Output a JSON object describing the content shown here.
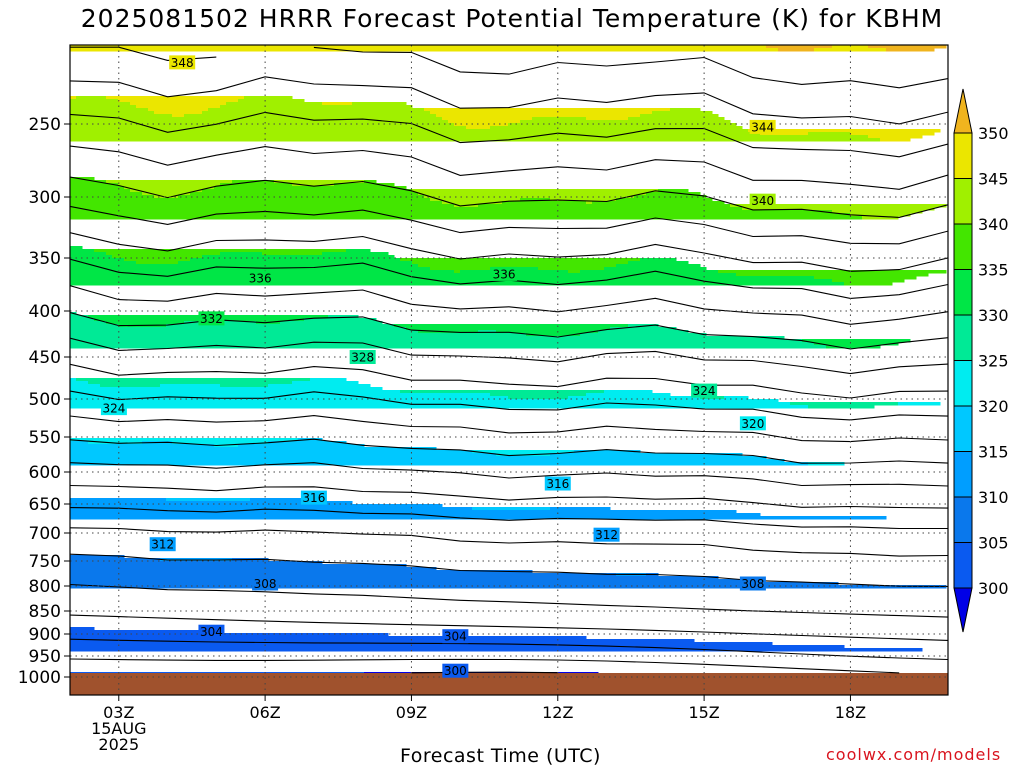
{
  "title": "2025081502 HRRR Forecast Potential Temperature (K) for KBHM",
  "xlabel": "Forecast Time (UTC)",
  "credit": "coolwx.com/models",
  "chart_data": {
    "type": "contour",
    "variable": "Potential Temperature (K)",
    "y_axis": {
      "quantity": "pressure (hPa)",
      "ticks": [
        250,
        300,
        350,
        400,
        450,
        500,
        550,
        600,
        650,
        700,
        750,
        800,
        850,
        900,
        950,
        1000
      ],
      "range": [
        1000,
        200
      ]
    },
    "x_axis": {
      "ticks": [
        {
          "label": "03Z",
          "hour": 3,
          "sub": [
            "15AUG",
            "2025"
          ]
        },
        {
          "label": "06Z",
          "hour": 6
        },
        {
          "label": "09Z",
          "hour": 9
        },
        {
          "label": "12Z",
          "hour": 12
        },
        {
          "label": "15Z",
          "hour": 15
        },
        {
          "label": "18Z",
          "hour": 18
        }
      ],
      "range_hours": [
        2,
        20
      ]
    },
    "grid": true,
    "legend_position": "right",
    "colorbar": {
      "levels": [
        300,
        305,
        310,
        315,
        320,
        325,
        330,
        335,
        340,
        345,
        350
      ],
      "colors": [
        "#0000e6",
        "#0a5af0",
        "#0a78ec",
        "#009eff",
        "#00c8ff",
        "#00ecf0",
        "#00ea96",
        "#00e646",
        "#43e600",
        "#a0f000",
        "#ebe600",
        "#ffff00",
        "#f0b41e"
      ]
    },
    "ground_color": "#a0522d",
    "contours": {
      "interval": 2,
      "levels": [
        300,
        302,
        304,
        306,
        308,
        310,
        312,
        314,
        316,
        318,
        320,
        322,
        324,
        326,
        328,
        330,
        332,
        334,
        336,
        338,
        340,
        342,
        344,
        346,
        348
      ],
      "profiles_hours": [
        2,
        3,
        4,
        5,
        6,
        7,
        8,
        9,
        10,
        11,
        12,
        13,
        14,
        15,
        16,
        17,
        18,
        19,
        20
      ],
      "base_profile": {
        "pressure": [
          1000,
          950,
          900,
          850,
          800,
          750,
          700,
          650,
          600,
          550,
          500,
          450,
          400,
          350,
          300,
          250,
          200
        ],
        "theta": [
          300.8,
          303.5,
          305.6,
          307.4,
          309.0,
          310.6,
          312.5,
          315.3,
          318.1,
          321.2,
          324.5,
          327.8,
          331.5,
          335.5,
          340.0,
          344.5,
          349.0
        ]
      },
      "labels": [
        {
          "text": "348",
          "hour": 4.3,
          "pressure": 211
        },
        {
          "text": "344",
          "hour": 16.2,
          "pressure": 252
        },
        {
          "text": "340",
          "hour": 16.2,
          "pressure": 303
        },
        {
          "text": "336",
          "hour": 5.9,
          "pressure": 369
        },
        {
          "text": "336",
          "hour": 10.9,
          "pressure": 365
        },
        {
          "text": "332",
          "hour": 4.9,
          "pressure": 408
        },
        {
          "text": "328",
          "hour": 8.0,
          "pressure": 450
        },
        {
          "text": "324",
          "hour": 2.9,
          "pressure": 512
        },
        {
          "text": "324",
          "hour": 15.0,
          "pressure": 490
        },
        {
          "text": "320",
          "hour": 16.0,
          "pressure": 532
        },
        {
          "text": "316",
          "hour": 7.0,
          "pressure": 640
        },
        {
          "text": "316",
          "hour": 12.0,
          "pressure": 618
        },
        {
          "text": "312",
          "hour": 3.9,
          "pressure": 720
        },
        {
          "text": "312",
          "hour": 13.0,
          "pressure": 703
        },
        {
          "text": "308",
          "hour": 6.0,
          "pressure": 795
        },
        {
          "text": "308",
          "hour": 16.0,
          "pressure": 795
        },
        {
          "text": "304",
          "hour": 4.9,
          "pressure": 895
        },
        {
          "text": "304",
          "hour": 9.9,
          "pressure": 905
        },
        {
          "text": "300",
          "hour": 9.9,
          "pressure": 985
        }
      ]
    }
  }
}
